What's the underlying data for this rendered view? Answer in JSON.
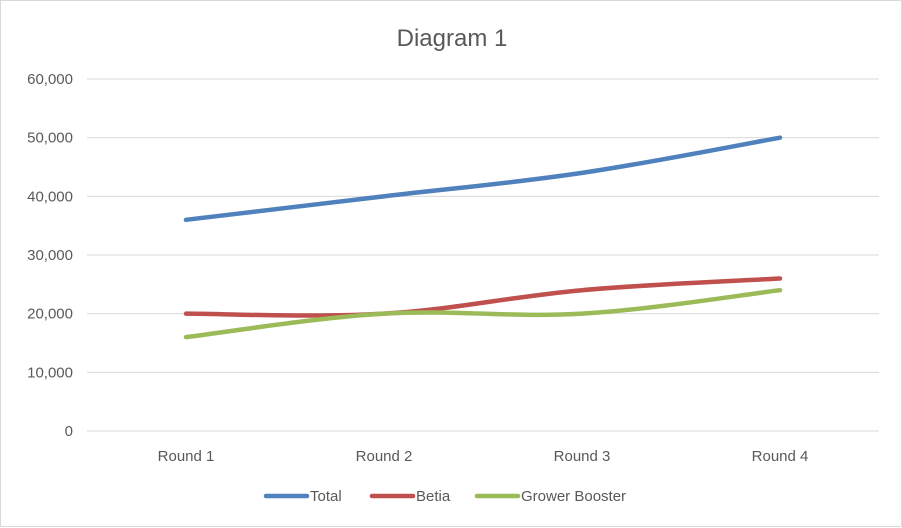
{
  "chart_data": {
    "type": "line",
    "title": "Diagram 1",
    "categories": [
      "Round 1",
      "Round 2",
      "Round 3",
      "Round 4"
    ],
    "y_tick_labels": [
      "0",
      "10,000",
      "20,000",
      "30,000",
      "40,000",
      "50,000",
      "60,000"
    ],
    "y_ticks": [
      0,
      10000,
      20000,
      30000,
      40000,
      50000,
      60000
    ],
    "ylim": [
      0,
      60000
    ],
    "grid": true,
    "legend_position": "bottom",
    "series": [
      {
        "name": "Total",
        "color": "#4f81bd",
        "values": [
          36000,
          40000,
          44000,
          50000
        ]
      },
      {
        "name": "Betia",
        "color": "#c0504d",
        "values": [
          20000,
          20000,
          24000,
          26000
        ]
      },
      {
        "name": "Grower Booster",
        "color": "#9bbb59",
        "values": [
          16000,
          20000,
          20000,
          24000
        ]
      }
    ]
  }
}
